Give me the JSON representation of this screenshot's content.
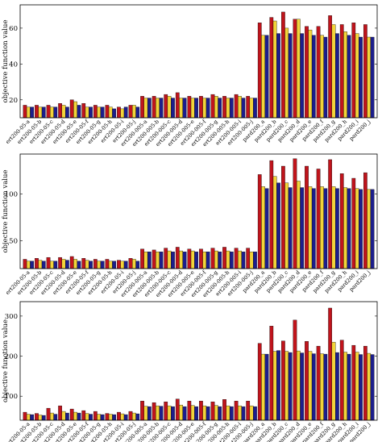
{
  "colors": {
    "red": "#c0141c",
    "yellow": "#f2d43a",
    "blue": "#1c1e8c"
  },
  "chart_data": [
    {
      "type": "bar",
      "ylabel": "objective function value",
      "ylim": [
        10,
        73
      ],
      "yticks": [
        20,
        40,
        60
      ],
      "series_colors": [
        "#c0141c",
        "#f2d43a",
        "#1c1e8c"
      ],
      "categories": [
        "ert200-05-a",
        "ert200-05-b",
        "ert200-05-c",
        "ert200-05-d",
        "ert200-05-e",
        "ert200-05-f",
        "ert200-05-g",
        "ert200-05-h",
        "ert200-05-i",
        "ert200-05-j",
        "ert200-005-a",
        "ert200-005-b",
        "ert200-005-c",
        "ert200-005-d",
        "ert200-005-e",
        "ert200-005-f",
        "ert200-005-g",
        "ert200-005-h",
        "ert200-005-i",
        "ert200-005-j",
        "pard200_a",
        "pard200_b",
        "pard200_c",
        "pard200_d",
        "pard200_e",
        "pard200_f",
        "pard200_g",
        "pard200_h",
        "pard200_i",
        "pard200_j"
      ],
      "series": [
        {
          "values": [
            17,
            17,
            17,
            18,
            20,
            18,
            17,
            17,
            16,
            17,
            22,
            22,
            23,
            24,
            22,
            22,
            23,
            22,
            23,
            22,
            63,
            66,
            69,
            65,
            61,
            61,
            67,
            62,
            63,
            62
          ]
        },
        {
          "values": [
            16,
            16,
            16,
            17,
            19,
            16,
            16,
            16,
            15,
            17,
            21,
            21,
            22,
            21,
            21,
            21,
            22,
            21,
            22,
            21,
            56,
            64,
            60,
            65,
            59,
            56,
            62,
            58,
            57,
            55
          ]
        },
        {
          "values": [
            16,
            16,
            16,
            16,
            17,
            16,
            16,
            15,
            16,
            16,
            21,
            21,
            21,
            21,
            21,
            21,
            21,
            21,
            21,
            21,
            56,
            57,
            57,
            57,
            56,
            55,
            57,
            56,
            55,
            55
          ]
        }
      ]
    },
    {
      "type": "bar",
      "ylabel": "objective function value",
      "ylim": [
        20,
        143
      ],
      "yticks": [
        50,
        100
      ],
      "series_colors": [
        "#c0141c",
        "#f2d43a",
        "#1c1e8c"
      ],
      "categories": [
        "ert200-05-a",
        "ert200-05-b",
        "ert200-05-c",
        "ert200-05-d",
        "ert200-05-e",
        "ert200-05-f",
        "ert200-05-g",
        "ert200-05-h",
        "ert200-05-i",
        "ert200-05-j",
        "ert200-005-a",
        "ert200-005-b",
        "ert200-005-c",
        "ert200-005-d",
        "ert200-005-e",
        "ert200-005-f",
        "ert200-005-g",
        "ert200-005-h",
        "ert200-005-i",
        "ert200-005-j",
        "pard200_a",
        "pard200_b",
        "pard200_c",
        "pard200_d",
        "pard200_e",
        "pard200_f",
        "pard200_g",
        "pard200_h",
        "pard200_i",
        "pard200_j"
      ],
      "series": [
        {
          "values": [
            30,
            31,
            32,
            32,
            33,
            31,
            30,
            30,
            29,
            31,
            41,
            40,
            42,
            43,
            41,
            41,
            42,
            43,
            42,
            42,
            121,
            136,
            130,
            138,
            130,
            127,
            137,
            122,
            117,
            123
          ]
        },
        {
          "values": [
            28,
            29,
            28,
            30,
            30,
            29,
            28,
            28,
            28,
            30,
            38,
            38,
            39,
            39,
            39,
            38,
            39,
            39,
            39,
            38,
            108,
            119,
            112,
            114,
            108,
            108,
            108,
            107,
            106,
            105
          ]
        },
        {
          "values": [
            28,
            28,
            28,
            29,
            28,
            28,
            28,
            28,
            28,
            28,
            38,
            38,
            38,
            38,
            38,
            38,
            38,
            38,
            38,
            38,
            106,
            112,
            107,
            107,
            106,
            106,
            106,
            106,
            105,
            105
          ]
        }
      ]
    },
    {
      "type": "bar",
      "ylabel": "objective function value",
      "ylim": [
        40,
        336
      ],
      "yticks": [
        100,
        200,
        300
      ],
      "series_colors": [
        "#c0141c",
        "#f2d43a",
        "#1c1e8c"
      ],
      "categories": [
        "ert200-05-a",
        "ert200-05-b",
        "ert200-05-c",
        "ert200-05-d",
        "ert200-05-e",
        "ert200-05-f",
        "ert200-05-g",
        "ert200-05-h",
        "ert200-05-i",
        "ert200-05-j",
        "ert200-005-a",
        "ert200-005-b",
        "ert200-005-c",
        "ert200-005-d",
        "ert200-005-e",
        "ert200-005-f",
        "ert200-005-g",
        "ert200-005-h",
        "ert200-005-i",
        "ert200-005-j",
        "pard200_a",
        "pard200_b",
        "pard200_c",
        "pard200_d",
        "pard200_e",
        "pard200_f",
        "pard200_g",
        "pard200_h",
        "pard200_i",
        "pard200_j"
      ],
      "series": [
        {
          "values": [
            60,
            57,
            70,
            76,
            68,
            64,
            62,
            57,
            60,
            62,
            88,
            84,
            86,
            93,
            88,
            88,
            86,
            92,
            88,
            88,
            232,
            275,
            238,
            290,
            237,
            225,
            320,
            240,
            227,
            225
          ]
        },
        {
          "values": [
            55,
            53,
            58,
            62,
            60,
            57,
            55,
            55,
            56,
            58,
            75,
            76,
            76,
            78,
            77,
            76,
            77,
            76,
            76,
            76,
            205,
            212,
            212,
            213,
            212,
            206,
            235,
            210,
            210,
            207
          ]
        },
        {
          "values": [
            54,
            52,
            55,
            58,
            58,
            55,
            54,
            54,
            54,
            56,
            74,
            75,
            74,
            74,
            74,
            74,
            74,
            74,
            74,
            74,
            205,
            214,
            209,
            208,
            206,
            205,
            209,
            205,
            204,
            204
          ]
        }
      ]
    }
  ]
}
